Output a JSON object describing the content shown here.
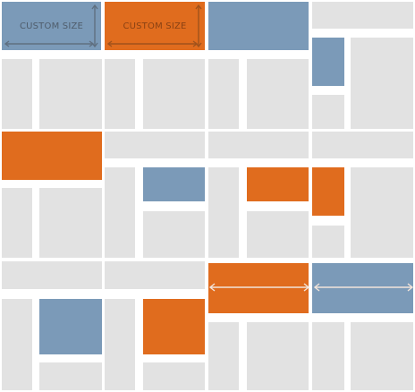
{
  "colors": {
    "gray": "#e2e2e2",
    "blue": "#7b9ab8",
    "orange": "#e06c1e",
    "marker_on_blue": "#5f6f80",
    "marker_on_orange": "#a0521c",
    "label_on_blue": "#4f5d6c",
    "label_on_orange": "#8a4214",
    "arrow_light": "#f2e4da"
  },
  "labels": {
    "custom_size_1": "CUSTOM SIZE",
    "custom_size_2": "CUSTOM SIZE"
  }
}
